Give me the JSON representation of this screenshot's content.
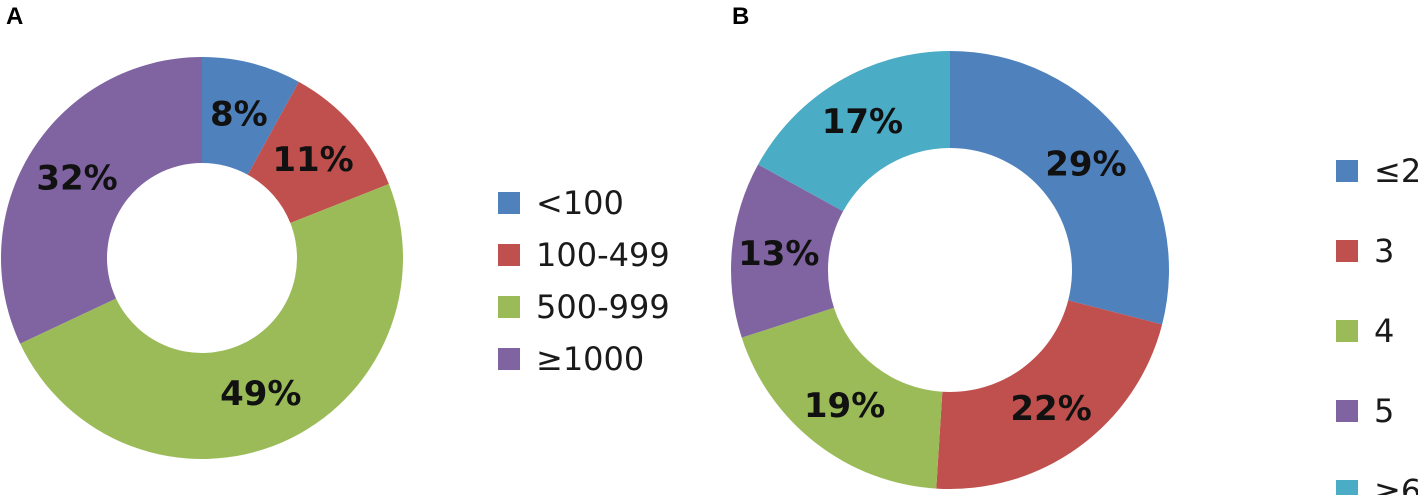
{
  "chart_data": [
    {
      "type": "pie",
      "panel": "A",
      "donut": true,
      "start_angle_deg": 0,
      "direction": "clockwise",
      "legend_position": "right",
      "categories": [
        "<100",
        "100-499",
        "500-999",
        "≥1000"
      ],
      "values": [
        8,
        11,
        49,
        32
      ],
      "labels": [
        "8%",
        "11%",
        "49%",
        "32%"
      ],
      "colors": [
        "#4f81bd",
        "#c0504d",
        "#9bbb59",
        "#8064a2"
      ]
    },
    {
      "type": "pie",
      "panel": "B",
      "donut": true,
      "start_angle_deg": 0,
      "direction": "clockwise",
      "legend_position": "right",
      "categories": [
        "≤2",
        "3",
        "4",
        "5",
        "≥6"
      ],
      "values": [
        29,
        22,
        19,
        13,
        17
      ],
      "labels": [
        "29%",
        "22%",
        "19%",
        "13%",
        "17%"
      ],
      "colors": [
        "#4f81bd",
        "#c0504d",
        "#9bbb59",
        "#8064a2",
        "#4bacc6"
      ]
    }
  ]
}
